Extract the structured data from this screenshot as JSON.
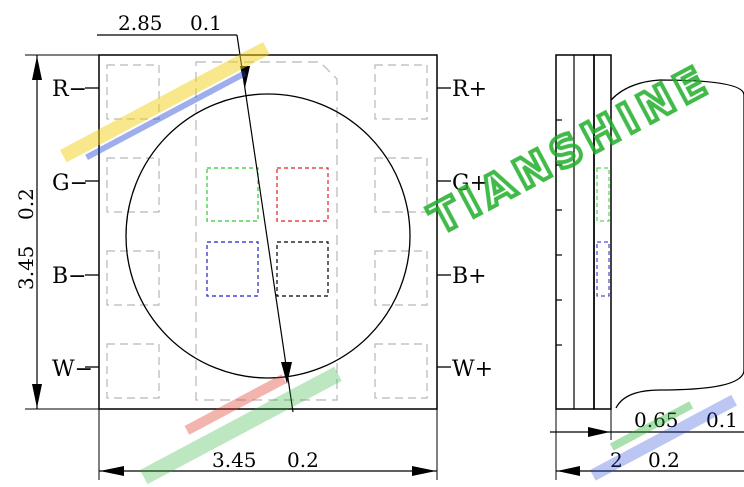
{
  "pins_left": [
    "R−",
    "G−",
    "B−",
    "W−"
  ],
  "pins_right": [
    "R+",
    "G+",
    "B+",
    "W+"
  ],
  "dimensions": {
    "top_width": "2.85",
    "top_tol": "0.1",
    "left_height": "3.45",
    "left_tol": "0.2",
    "bottom_width": "3.45",
    "bottom_tol": "0.2",
    "side_thickness": "0.65",
    "side_thickness_tol": "0.1",
    "side_total": "2",
    "side_total_tol": "0.2"
  },
  "watermark": {
    "text": "TIANSHINE",
    "colors": [
      "#1fae2a",
      "#1b3fd6",
      "#f2d21a",
      "#e23a2a"
    ]
  },
  "die_colors": {
    "green": "#2ecc2e",
    "red": "#e02020",
    "blue": "#2020c8",
    "white": "#000000"
  }
}
